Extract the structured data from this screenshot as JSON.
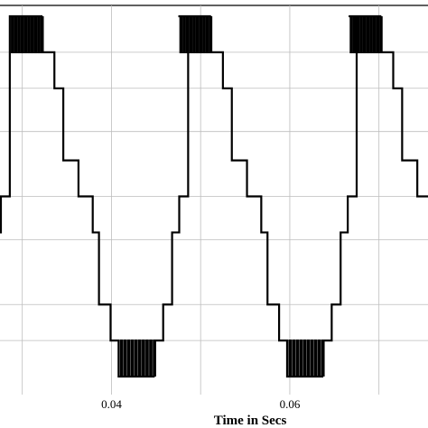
{
  "chart_data": {
    "type": "line",
    "title": "",
    "xlabel": "Time in Secs",
    "ylabel": "",
    "x_ticks": [
      0.04,
      0.06
    ],
    "x_tick_labels": [
      "0.04",
      "0.06"
    ],
    "xlim": [
      0.0275,
      0.0755
    ],
    "ylim": [
      -5.5,
      5.3
    ],
    "grid": true,
    "fundamental_period": 0.02,
    "series": [
      {
        "levels": [
          {
            "level": 5,
            "start_phase": 0.0,
            "end_phase": 0.185,
            "pwm": true
          },
          {
            "level": 4,
            "start_phase": 0.185,
            "end_phase": 0.25
          },
          {
            "level": 3,
            "start_phase": 0.25,
            "end_phase": 0.3
          },
          {
            "level": 1,
            "start_phase": 0.3,
            "end_phase": 0.385
          },
          {
            "level": 0,
            "start_phase": 0.385,
            "end_phase": 0.465
          },
          {
            "level": -1,
            "start_phase": 0.465,
            "end_phase": 0.5
          },
          {
            "level": -3,
            "start_phase": 0.5,
            "end_phase": 0.565
          },
          {
            "level": -4,
            "start_phase": 0.565,
            "end_phase": 0.61
          },
          {
            "level": -5,
            "start_phase": 0.61,
            "end_phase": 0.815,
            "pwm": true
          },
          {
            "level": -4,
            "start_phase": 0.815,
            "end_phase": 0.86
          },
          {
            "level": -3,
            "start_phase": 0.86,
            "end_phase": 0.91
          },
          {
            "level": -1,
            "start_phase": 0.91,
            "end_phase": 0.95
          },
          {
            "level": 0,
            "start_phase": 0.95,
            "end_phase": 1.0
          }
        ],
        "pwm_pulses_per_block": 10,
        "pwm_low_level_positive": 4,
        "pwm_low_level_negative": -4,
        "cycle_start_times": [
          0.0286,
          0.0475,
          0.0666
        ]
      }
    ],
    "gridline_y_values": [
      4,
      3,
      1.8,
      0,
      -1.2,
      -3,
      -4
    ]
  }
}
